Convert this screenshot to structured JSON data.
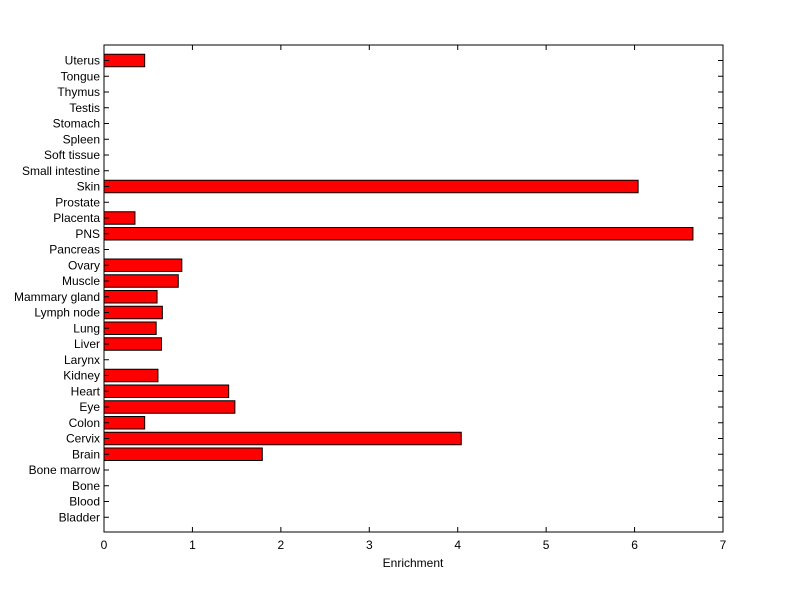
{
  "chart_data": {
    "type": "bar",
    "orientation": "horizontal",
    "title": "",
    "xlabel": "Enrichment",
    "ylabel": "",
    "xlim": [
      0,
      7
    ],
    "x_ticks": [
      0,
      1,
      2,
      3,
      4,
      5,
      6,
      7
    ],
    "grid": false,
    "legend": "none",
    "bar_color": "#ff0000",
    "bar_edge_color": "#000000",
    "categories_top_to_bottom": [
      "Uterus",
      "Tongue",
      "Thymus",
      "Testis",
      "Stomach",
      "Spleen",
      "Soft tissue",
      "Small intestine",
      "Skin",
      "Prostate",
      "Placenta",
      "PNS",
      "Pancreas",
      "Ovary",
      "Muscle",
      "Mammary gland",
      "Lymph node",
      "Lung",
      "Liver",
      "Larynx",
      "Kidney",
      "Heart",
      "Eye",
      "Colon",
      "Cervix",
      "Brain",
      "Bone marrow",
      "Bone",
      "Blood",
      "Bladder"
    ],
    "values": [
      0.46,
      0,
      0,
      0,
      0,
      0,
      0,
      0,
      6.04,
      0,
      0.35,
      6.66,
      0,
      0.88,
      0.84,
      0.6,
      0.66,
      0.59,
      0.65,
      0,
      0.61,
      1.41,
      1.48,
      0.46,
      4.04,
      1.79,
      0,
      0,
      0,
      0
    ]
  }
}
